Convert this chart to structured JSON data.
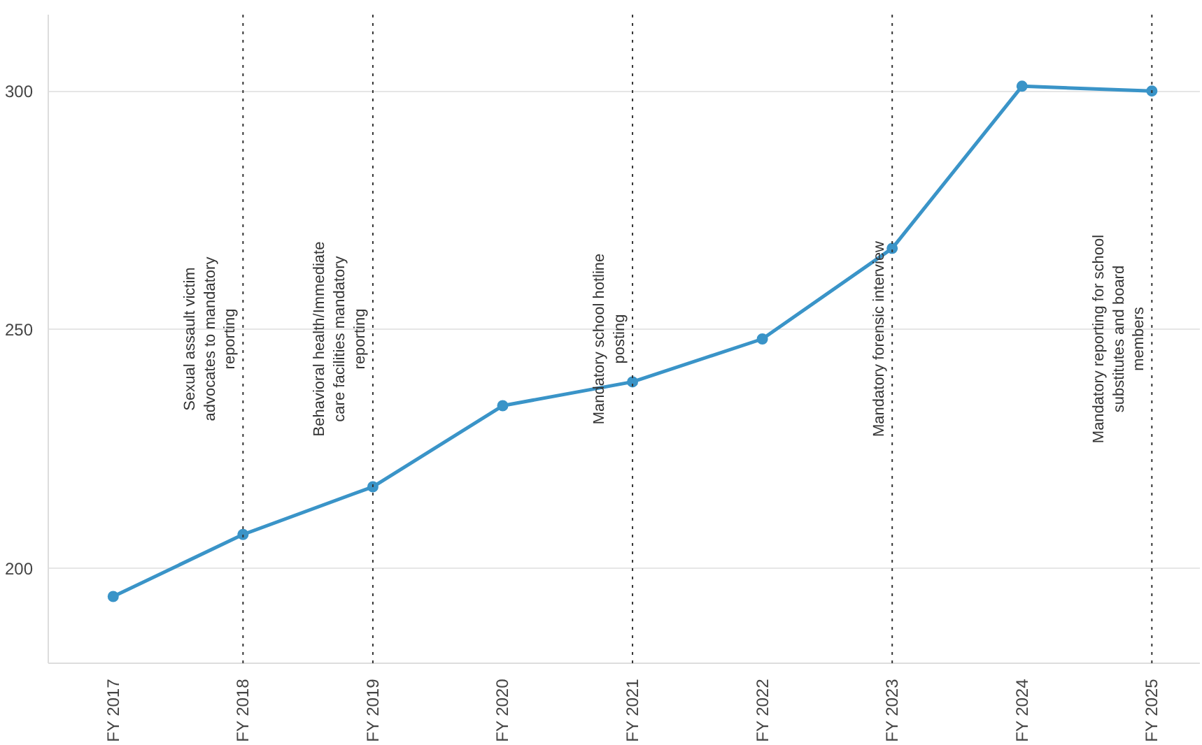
{
  "chart_data": {
    "type": "line",
    "categories": [
      "FY 2017",
      "FY 2018",
      "FY 2019",
      "FY 2020",
      "FY 2021",
      "FY 2022",
      "FY 2023",
      "FY 2024",
      "FY 2025"
    ],
    "series": [
      {
        "color": "#3a94c8",
        "values": [
          194,
          207,
          217,
          234,
          239,
          248,
          267,
          301,
          300
        ]
      }
    ],
    "ylim": [
      180,
      316
    ],
    "yticks": [
      200,
      250,
      300
    ],
    "grid": "y",
    "marker": "circle",
    "line_style": "solid",
    "ref_lines": [
      {
        "axis": "x",
        "value": "FY 2018",
        "label": "Sexual assault victim\nadvocates to mandatory\nreporting",
        "color": "#333333",
        "line_style": "dotted"
      },
      {
        "axis": "x",
        "value": "FY 2019",
        "label": "Behavioral health/Immediate\ncare facilities mandatory\nreporting",
        "color": "#333333",
        "line_style": "dotted"
      },
      {
        "axis": "x",
        "value": "FY 2021",
        "label": "Mandatory school hotline\nposting",
        "color": "#333333",
        "line_style": "dotted"
      },
      {
        "axis": "x",
        "value": "FY 2023",
        "label": "Mandatory forensic interview",
        "color": "#333333",
        "line_style": "dotted"
      },
      {
        "axis": "x",
        "value": "FY 2025",
        "label": "Mandatory reporting for school\nsubstitutes and board\nmembers",
        "color": "#333333",
        "line_style": "dotted"
      }
    ]
  }
}
